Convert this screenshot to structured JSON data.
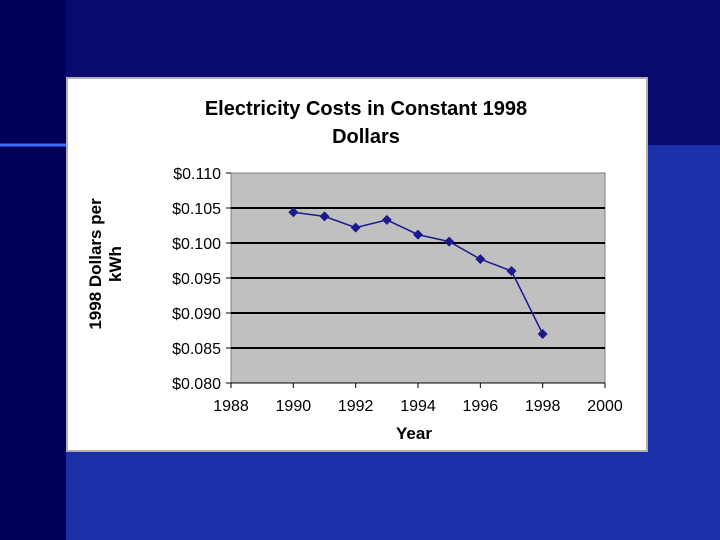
{
  "slide": {
    "colors": {
      "background": "#0a0a6e",
      "band": "#1a2fa8",
      "accent_line": "#3b6cff"
    }
  },
  "chart_data": {
    "type": "line",
    "title_lines": [
      "Electricity Costs in Constant 1998",
      "Dollars"
    ],
    "xlabel": "Year",
    "ylabel_lines": [
      "1998 Dollars per",
      "kWh"
    ],
    "xlim": [
      1988,
      2000
    ],
    "ylim": [
      0.08,
      0.11
    ],
    "x_ticks": [
      1988,
      1990,
      1992,
      1994,
      1996,
      1998,
      2000
    ],
    "y_ticks": [
      {
        "value": 0.08,
        "label": "$0.080"
      },
      {
        "value": 0.085,
        "label": "$0.085"
      },
      {
        "value": 0.09,
        "label": "$0.090"
      },
      {
        "value": 0.095,
        "label": "$0.095"
      },
      {
        "value": 0.1,
        "label": "$0.100"
      },
      {
        "value": 0.105,
        "label": "$0.105"
      },
      {
        "value": 0.11,
        "label": "$0.110"
      }
    ],
    "grid": true,
    "legend": "none",
    "plot_background": "#c0c0c0",
    "line_color": "#1a1a8c",
    "series": [
      {
        "x": [
          1990,
          1991,
          1992,
          1993,
          1994,
          1995,
          1996,
          1997,
          1998
        ],
        "y": [
          0.1044,
          0.1038,
          0.1022,
          0.1033,
          0.1012,
          0.1002,
          0.0977,
          0.096,
          0.087
        ]
      }
    ]
  }
}
